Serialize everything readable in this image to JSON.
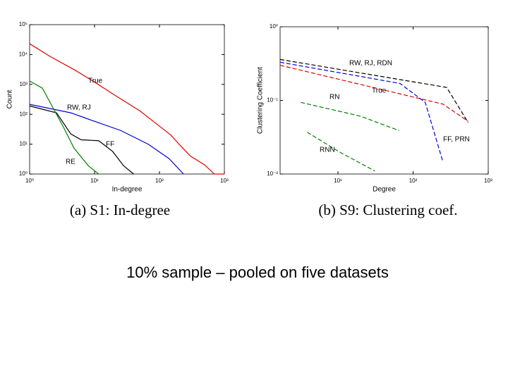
{
  "text": "10% sample – pooled on five datasets",
  "chart_data": [
    {
      "type": "line",
      "caption": "(a) S1: In-degree",
      "xlabel": "In-degree",
      "ylabel": "Count",
      "xscale": "log",
      "yscale": "log",
      "xlim": [
        1,
        1000
      ],
      "ylim": [
        1,
        100000
      ],
      "xticks": [
        {
          "value": 1,
          "label": "10⁰"
        },
        {
          "value": 10,
          "label": "10¹"
        },
        {
          "value": 100,
          "label": "10²"
        },
        {
          "value": 1000,
          "label": "10³"
        }
      ],
      "yticks": [
        {
          "value": 1,
          "label": "10⁰"
        },
        {
          "value": 10,
          "label": "10¹"
        },
        {
          "value": 100,
          "label": "10²"
        },
        {
          "value": 1000,
          "label": "10³"
        },
        {
          "value": 10000,
          "label": "10⁴"
        },
        {
          "value": 100000,
          "label": "10⁵"
        }
      ],
      "series": [
        {
          "name": "True",
          "color": "#e00000",
          "x": [
            1,
            2,
            5,
            10,
            20,
            50,
            100,
            150,
            200,
            300,
            500,
            700,
            1000
          ],
          "values": [
            23000,
            9000,
            3000,
            1200,
            450,
            130,
            40,
            20,
            10,
            4,
            2,
            1,
            1
          ]
        },
        {
          "name": "RW, RJ",
          "color": "#0000e0",
          "x": [
            1,
            4.3,
            10,
            25,
            67,
            140,
            235
          ],
          "values": [
            215,
            112,
            58,
            29,
            10,
            3.3,
            1
          ]
        },
        {
          "name": "FF",
          "color": "#000000",
          "x": [
            1,
            2.6,
            4.3,
            6.2,
            11.6,
            19,
            28,
            40
          ],
          "values": [
            190,
            112,
            22,
            14,
            13,
            5.7,
            1.9,
            1
          ]
        },
        {
          "name": "RE",
          "color": "#008000",
          "x": [
            1,
            1.57,
            3.3,
            4.8,
            8,
            11.6
          ],
          "values": [
            1300,
            750,
            38,
            7.5,
            1.9,
            1
          ]
        }
      ]
    },
    {
      "type": "line",
      "caption": "(b) S9: Clustering coef.",
      "xlabel": "Degree",
      "ylabel": "Clustering Coefficient",
      "xscale": "log",
      "yscale": "log",
      "xlim": [
        1.7,
        1000
      ],
      "ylim": [
        0.01,
        1
      ],
      "xticks": [
        {
          "value": 10,
          "label": "10¹"
        },
        {
          "value": 100,
          "label": "10²"
        },
        {
          "value": 1000,
          "label": "10³"
        }
      ],
      "yticks": [
        {
          "value": 0.01,
          "label": "10⁻²"
        },
        {
          "value": 0.1,
          "label": "10⁻¹"
        },
        {
          "value": 1,
          "label": "10⁰"
        }
      ],
      "series": [
        {
          "name": "RW, RJ, RDN",
          "color": "#000000",
          "x": [
            1.7,
            280,
            540
          ],
          "values": [
            0.36,
            0.15,
            0.05
          ]
        },
        {
          "name": "True",
          "color": "#e00000",
          "x": [
            1.7,
            250,
            540
          ],
          "values": [
            0.3,
            0.089,
            0.052
          ]
        },
        {
          "name": "RN",
          "color": "#008000",
          "x": [
            3.2,
            20,
            65
          ],
          "values": [
            0.094,
            0.061,
            0.039
          ]
        },
        {
          "name": "RNN",
          "color": "#008000",
          "x": [
            3.9,
            10.4,
            31
          ],
          "values": [
            0.037,
            0.02,
            0.011
          ]
        },
        {
          "name": "FF, PRN",
          "color": "#0000e0",
          "x": [
            1.7,
            67,
            145,
            250
          ],
          "values": [
            0.33,
            0.17,
            0.094,
            0.0145
          ]
        }
      ]
    }
  ]
}
